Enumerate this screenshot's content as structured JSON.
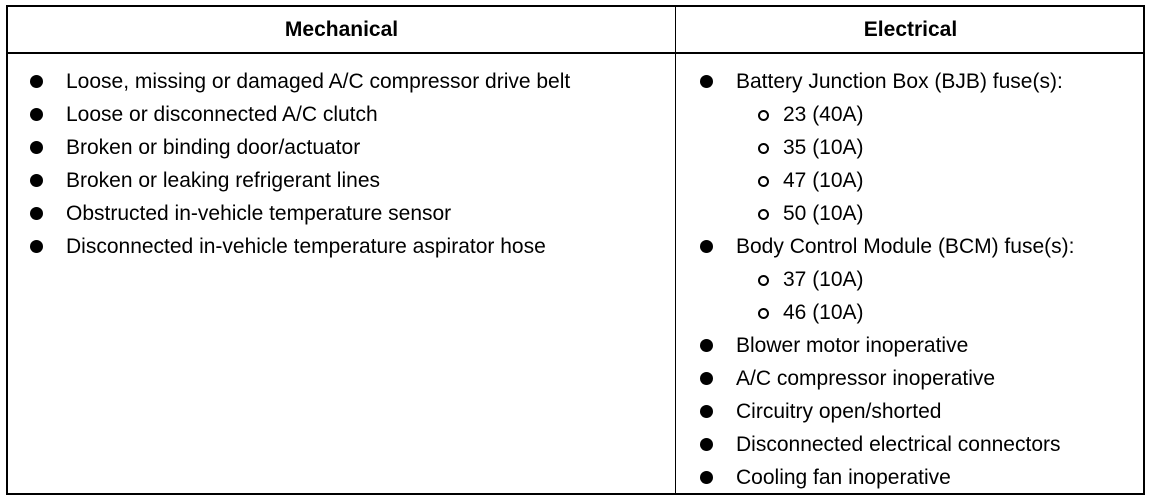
{
  "table": {
    "headers": {
      "mechanical": "Mechanical",
      "electrical": "Electrical"
    },
    "mechanical_items": [
      "Loose, missing or damaged A/C compressor drive belt",
      "Loose or disconnected A/C clutch",
      "Broken or binding door/actuator",
      "Broken or leaking refrigerant lines",
      "Obstructed in-vehicle temperature sensor",
      "Disconnected in-vehicle temperature aspirator hose"
    ],
    "electrical_items": [
      {
        "label": "Battery Junction Box (BJB) fuse(s):",
        "sub": [
          "23 (40A)",
          "35 (10A)",
          "47 (10A)",
          "50 (10A)"
        ]
      },
      {
        "label": "Body Control Module (BCM) fuse(s):",
        "sub": [
          "37 (10A)",
          "46 (10A)"
        ]
      },
      {
        "label": "Blower motor inoperative"
      },
      {
        "label": "A/C compressor inoperative"
      },
      {
        "label": "Circuitry open/shorted"
      },
      {
        "label": "Disconnected electrical connectors"
      },
      {
        "label": "Cooling fan inoperative"
      }
    ]
  }
}
